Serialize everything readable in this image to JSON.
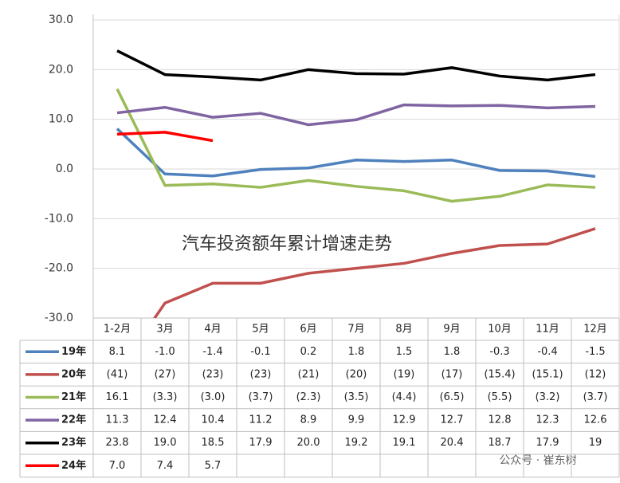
{
  "chart_data": {
    "type": "line",
    "categories": [
      "1-2月",
      "3月",
      "4月",
      "5月",
      "6月",
      "7月",
      "8月",
      "9月",
      "10月",
      "11月",
      "12月"
    ],
    "series": [
      {
        "name": "19年",
        "color": "#4f81bd",
        "values": [
          8.1,
          -1.0,
          -1.4,
          -0.1,
          0.2,
          1.8,
          1.5,
          1.8,
          -0.3,
          -0.4,
          -1.5
        ],
        "value_labels": [
          "8.1",
          "-1.0",
          "-1.4",
          "-0.1",
          "0.2",
          "1.8",
          "1.5",
          "1.8",
          "-0.3",
          "-0.4",
          "-1.5"
        ]
      },
      {
        "name": "20年",
        "color": "#c0504d",
        "values": [
          -41,
          -27,
          -23,
          -23,
          -21,
          -20,
          -19,
          -17,
          -15.4,
          -15.1,
          -12
        ],
        "value_labels": [
          "(41)",
          "(27)",
          "(23)",
          "(23)",
          "(21)",
          "(20)",
          "(19)",
          "(17)",
          "(15.4)",
          "(15.1)",
          "(12)"
        ]
      },
      {
        "name": "21年",
        "color": "#9bbb59",
        "values": [
          16.1,
          -3.3,
          -3.0,
          -3.7,
          -2.3,
          -3.5,
          -4.4,
          -6.5,
          -5.5,
          -3.2,
          -3.7
        ],
        "value_labels": [
          "16.1",
          "(3.3)",
          "(3.0)",
          "(3.7)",
          "(2.3)",
          "(3.5)",
          "(4.4)",
          "(6.5)",
          "(5.5)",
          "(3.2)",
          "(3.7)"
        ]
      },
      {
        "name": "22年",
        "color": "#8064a2",
        "values": [
          11.3,
          12.4,
          10.4,
          11.2,
          8.9,
          9.9,
          12.9,
          12.7,
          12.8,
          12.3,
          12.6
        ],
        "value_labels": [
          "11.3",
          "12.4",
          "10.4",
          "11.2",
          "8.9",
          "9.9",
          "12.9",
          "12.7",
          "12.8",
          "12.3",
          "12.6"
        ]
      },
      {
        "name": "23年",
        "color": "#000000",
        "values": [
          23.8,
          19.0,
          18.5,
          17.9,
          20.0,
          19.2,
          19.1,
          20.4,
          18.7,
          17.9,
          19
        ],
        "value_labels": [
          "23.8",
          "19.0",
          "18.5",
          "17.9",
          "20.0",
          "19.2",
          "19.1",
          "20.4",
          "18.7",
          "17.9",
          "19"
        ]
      },
      {
        "name": "24年",
        "color": "#ff0000",
        "values": [
          7.0,
          7.4,
          5.7,
          null,
          null,
          null,
          null,
          null,
          null,
          null,
          null
        ],
        "value_labels": [
          "7.0",
          "7.4",
          "5.7",
          null,
          null,
          null,
          null,
          null,
          null,
          null,
          null
        ]
      }
    ],
    "ylim": [
      -30,
      30
    ],
    "yticks": [
      {
        "value": -30,
        "label": "-30.0"
      },
      {
        "value": -20,
        "label": "-20.0"
      },
      {
        "value": -10,
        "label": "-10.0"
      },
      {
        "value": 0,
        "label": "0.0"
      },
      {
        "value": 10,
        "label": "10.0"
      },
      {
        "value": 20,
        "label": "20.0"
      },
      {
        "value": 30,
        "label": "30.0"
      }
    ],
    "negative_tick_color": "#e00000",
    "grid": true,
    "annotation": "汽车投资额年累计增速走势",
    "watermark": "公众号 · 崔东树"
  }
}
